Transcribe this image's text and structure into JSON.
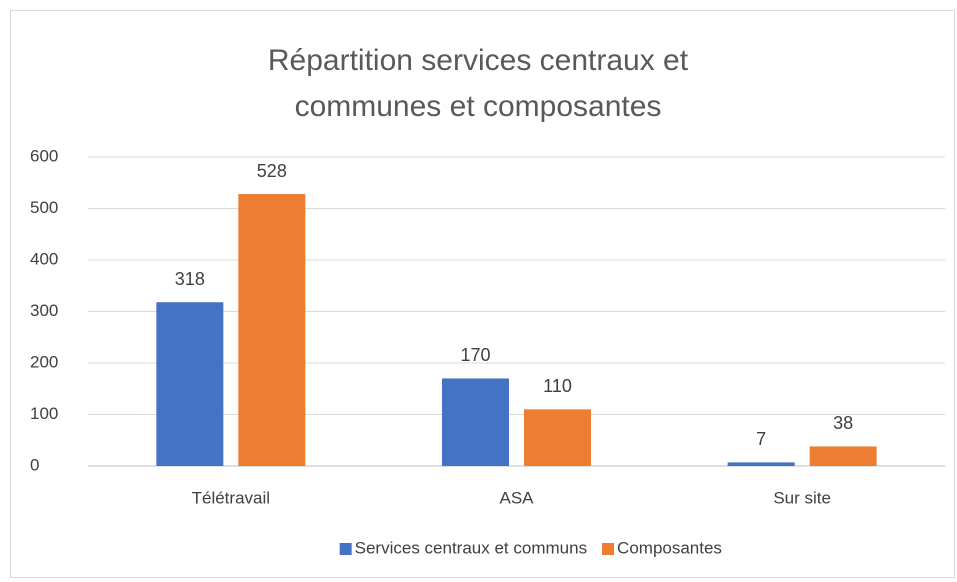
{
  "chart_data": {
    "type": "bar",
    "title": "Répartition services centraux et communes et composantes",
    "categories": [
      "Télétravail",
      "ASA",
      "Sur site"
    ],
    "series": [
      {
        "name": "Services centraux et communs",
        "color": "#4472c4",
        "values": [
          318,
          170,
          7
        ]
      },
      {
        "name": "Composantes",
        "color": "#ed7d31",
        "values": [
          528,
          110,
          38
        ]
      }
    ],
    "ylim": [
      0,
      600
    ],
    "yticks": [
      0,
      100,
      200,
      300,
      400,
      500,
      600
    ],
    "grid": true,
    "legend": "bottom"
  }
}
